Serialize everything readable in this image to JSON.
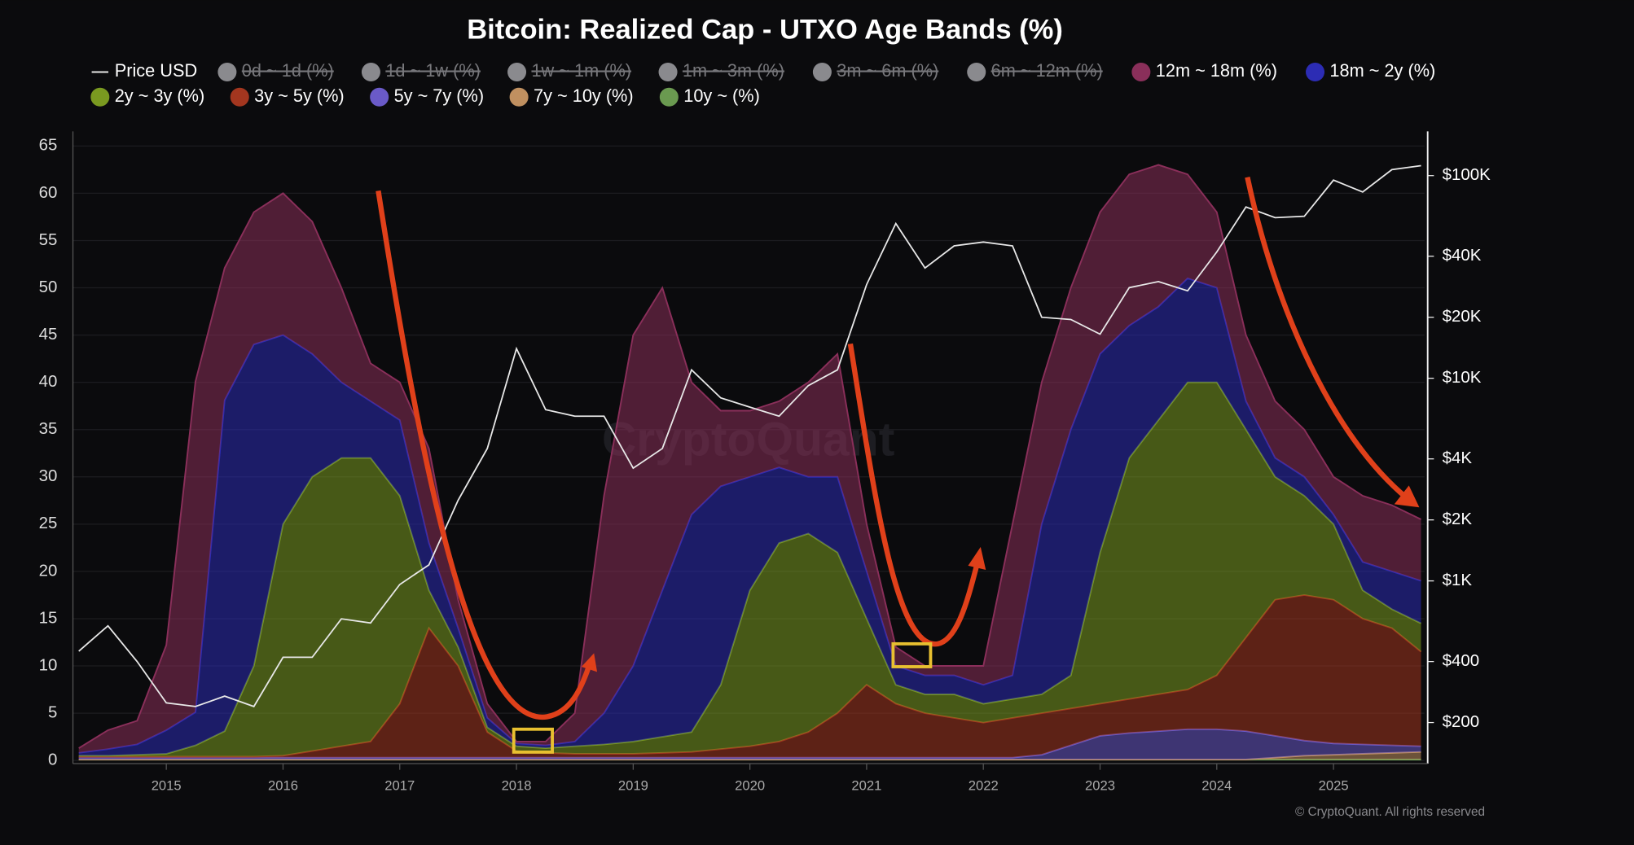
{
  "chart_data": {
    "type": "stacked-area",
    "title": "Bitcoin: Realized Cap - UTXO Age Bands (%)",
    "watermark": "CryptoQuant",
    "credit": "© CryptoQuant. All rights reserved",
    "x": [
      2014.25,
      2014.5,
      2014.75,
      2015.0,
      2015.25,
      2015.5,
      2015.75,
      2016.0,
      2016.25,
      2016.5,
      2016.75,
      2017.0,
      2017.25,
      2017.5,
      2017.75,
      2018.0,
      2018.25,
      2018.5,
      2018.75,
      2019.0,
      2019.25,
      2019.5,
      2019.75,
      2020.0,
      2020.25,
      2020.5,
      2020.75,
      2021.0,
      2021.25,
      2021.5,
      2021.75,
      2022.0,
      2022.25,
      2022.5,
      2022.75,
      2023.0,
      2023.25,
      2023.5,
      2023.75,
      2024.0,
      2024.25,
      2024.5,
      2024.75,
      2025.0,
      2025.25,
      2025.5,
      2025.75
    ],
    "xlim": [
      2014.2,
      2025.78
    ],
    "xticks": [
      2015,
      2016,
      2017,
      2018,
      2019,
      2020,
      2021,
      2022,
      2023,
      2024,
      2025
    ],
    "ylim": [
      0,
      65
    ],
    "yticks": [
      0,
      5,
      10,
      15,
      20,
      25,
      30,
      35,
      40,
      45,
      50,
      55,
      60,
      65
    ],
    "y2lim": [
      130,
      140000
    ],
    "y2_log": true,
    "y2ticks": [
      {
        "value": 200,
        "label": "$200"
      },
      {
        "value": 400,
        "label": "$400"
      },
      {
        "value": 1000,
        "label": "$1K"
      },
      {
        "value": 2000,
        "label": "$2K"
      },
      {
        "value": 4000,
        "label": "$4K"
      },
      {
        "value": 10000,
        "label": "$10K"
      },
      {
        "value": 20000,
        "label": "$20K"
      },
      {
        "value": 40000,
        "label": "$40K"
      },
      {
        "value": 100000,
        "label": "$100K"
      }
    ],
    "grid": true,
    "series": [
      {
        "name": "Price USD",
        "color": "#e8e8e8",
        "axis": "y2",
        "values": [
          450,
          600,
          400,
          250,
          240,
          270,
          240,
          420,
          420,
          650,
          620,
          960,
          1200,
          2500,
          4500,
          14000,
          7000,
          6500,
          6500,
          3600,
          4500,
          11000,
          8000,
          7200,
          6500,
          9200,
          11000,
          29000,
          58000,
          35000,
          45000,
          47000,
          45000,
          20000,
          19500,
          16500,
          28000,
          30000,
          27000,
          42000,
          70000,
          62000,
          63000,
          95000,
          83000,
          107000,
          112000
        ]
      },
      {
        "name": "0d ~ 1d (%)",
        "color": "#8a8a8e",
        "hidden": true
      },
      {
        "name": "1d ~ 1w (%)",
        "color": "#8a8a8e",
        "hidden": true
      },
      {
        "name": "1w ~ 1m (%)",
        "color": "#8a8a8e",
        "hidden": true
      },
      {
        "name": "1m ~ 3m (%)",
        "color": "#8a8a8e",
        "hidden": true
      },
      {
        "name": "3m ~ 6m (%)",
        "color": "#8a8a8e",
        "hidden": true
      },
      {
        "name": "6m ~ 12m (%)",
        "color": "#8a8a8e",
        "hidden": true
      },
      {
        "name": "12m ~ 18m (%)",
        "color": "#8a2f5a",
        "values": [
          0.5,
          2,
          2.5,
          9,
          35,
          14,
          14,
          15,
          14,
          10,
          4,
          4,
          10,
          3,
          1.5,
          0.2,
          0.4,
          3,
          23,
          35,
          32,
          14,
          8,
          7,
          7,
          10,
          13,
          5,
          2,
          1,
          1,
          2,
          16,
          15,
          15,
          15,
          16,
          15,
          11,
          8,
          7,
          6,
          5,
          4,
          7,
          7,
          6.5
        ]
      },
      {
        "name": "18m ~ 2y (%)",
        "color": "#2c2cb4",
        "values": [
          0.3,
          0.7,
          1.1,
          2.5,
          3.5,
          35,
          34,
          20,
          13,
          8,
          6,
          8,
          5,
          2,
          1,
          0.3,
          0.3,
          0.5,
          3.3,
          8,
          15.5,
          23,
          21,
          12,
          8,
          6,
          8,
          5,
          2,
          2,
          2,
          2,
          2.5,
          18,
          26,
          21,
          14,
          12,
          11,
          10,
          3,
          2,
          2,
          1,
          3,
          4,
          4.5
        ]
      },
      {
        "name": "2y ~ 3y (%)",
        "color": "#7a9a20",
        "values": [
          0.1,
          0.1,
          0.2,
          0.3,
          1.2,
          2.7,
          9.6,
          24.5,
          29,
          30.5,
          30,
          22,
          4,
          2,
          0.5,
          0.5,
          0.5,
          0.8,
          1,
          1.3,
          1.7,
          2.1,
          6.8,
          16.5,
          21,
          21,
          17,
          7,
          2,
          2,
          2.5,
          2,
          2,
          2,
          3.5,
          16,
          25.5,
          29,
          32.5,
          31,
          22,
          13,
          10.5,
          8,
          3,
          2,
          3
        ]
      },
      {
        "name": "3y ~ 5y (%)",
        "color": "#a3361f",
        "values": [
          0.1,
          0.1,
          0.1,
          0.1,
          0.1,
          0.1,
          0.1,
          0.2,
          0.7,
          1.2,
          1.7,
          5.7,
          13.7,
          9.7,
          2.7,
          0.7,
          0.5,
          0.4,
          0.4,
          0.4,
          0.5,
          0.6,
          0.9,
          1.2,
          1.7,
          2.7,
          4.7,
          7.7,
          5.7,
          4.7,
          4.2,
          3.7,
          4.2,
          4.4,
          3.9,
          3.4,
          3.6,
          3.9,
          4.2,
          5.7,
          9.9,
          14.4,
          15.4,
          15.2,
          13.3,
          12.4,
          10
        ]
      },
      {
        "name": "5y ~ 7y (%)",
        "color": "#6a5ac8",
        "values": [
          0.2,
          0.2,
          0.2,
          0.2,
          0.2,
          0.2,
          0.2,
          0.2,
          0.2,
          0.2,
          0.2,
          0.2,
          0.2,
          0.2,
          0.2,
          0.2,
          0.2,
          0.2,
          0.2,
          0.2,
          0.2,
          0.2,
          0.2,
          0.2,
          0.2,
          0.2,
          0.2,
          0.2,
          0.2,
          0.2,
          0.2,
          0.2,
          0.2,
          0.5,
          1.5,
          2.5,
          2.8,
          3,
          3.2,
          3.2,
          3,
          2.3,
          1.6,
          1.2,
          1,
          0.8,
          0.6
        ]
      },
      {
        "name": "7y ~ 10y (%)",
        "color": "#c09060",
        "values": [
          0,
          0,
          0,
          0,
          0,
          0,
          0,
          0,
          0,
          0,
          0,
          0,
          0,
          0,
          0,
          0,
          0,
          0,
          0,
          0,
          0,
          0,
          0,
          0,
          0,
          0,
          0,
          0,
          0,
          0,
          0,
          0,
          0,
          0,
          0,
          0,
          0,
          0,
          0,
          0,
          0,
          0.2,
          0.4,
          0.5,
          0.6,
          0.7,
          0.8
        ]
      },
      {
        "name": "10y ~ (%)",
        "color": "#6a9a50",
        "values": [
          0.1,
          0.1,
          0.1,
          0.1,
          0.1,
          0.1,
          0.1,
          0.1,
          0.1,
          0.1,
          0.1,
          0.1,
          0.1,
          0.1,
          0.1,
          0.1,
          0.1,
          0.1,
          0.1,
          0.1,
          0.1,
          0.1,
          0.1,
          0.1,
          0.1,
          0.1,
          0.1,
          0.1,
          0.1,
          0.1,
          0.1,
          0.1,
          0.1,
          0.1,
          0.1,
          0.1,
          0.1,
          0.1,
          0.1,
          0.1,
          0.1,
          0.1,
          0.1,
          0.1,
          0.1,
          0.1,
          0.1
        ]
      }
    ]
  }
}
